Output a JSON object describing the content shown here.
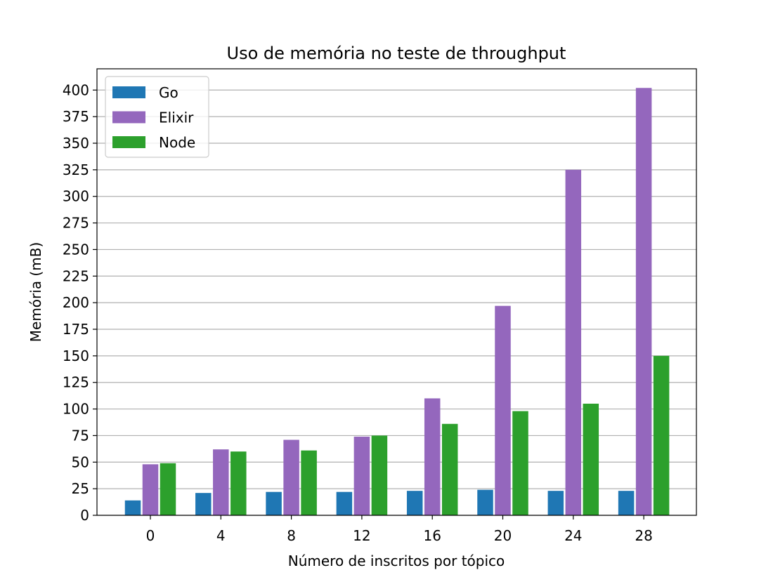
{
  "chart_data": {
    "type": "bar",
    "title": "Uso de memória no teste de throughput",
    "xlabel": "Número de inscritos por tópico",
    "ylabel": "Memória (mB)",
    "categories": [
      "0",
      "4",
      "8",
      "12",
      "16",
      "20",
      "24",
      "28"
    ],
    "series": [
      {
        "name": "Go",
        "color": "#1f77b4",
        "values": [
          14,
          21,
          22,
          22,
          23,
          24,
          23,
          23
        ]
      },
      {
        "name": "Elixir",
        "color": "#9467bd",
        "values": [
          48,
          62,
          71,
          74,
          110,
          197,
          325,
          402
        ]
      },
      {
        "name": "Node",
        "color": "#2ca02c",
        "values": [
          49,
          60,
          61,
          75,
          86,
          98,
          105,
          150
        ]
      }
    ],
    "ylim": [
      0,
      420
    ],
    "yticks": [
      0,
      25,
      50,
      75,
      100,
      125,
      150,
      175,
      200,
      225,
      250,
      275,
      300,
      325,
      350,
      375,
      400
    ],
    "grid": "horizontal",
    "legend_position": "top-left"
  }
}
